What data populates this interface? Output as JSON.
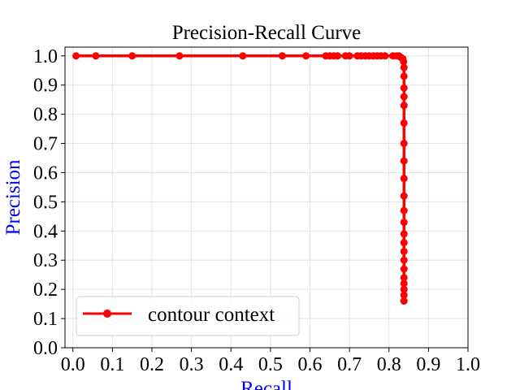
{
  "chart_data": {
    "type": "line",
    "title": "Precision-Recall Curve",
    "xlabel": "Recall",
    "ylabel": "Precision",
    "xlim": [
      -0.02,
      1.0
    ],
    "ylim": [
      0.0,
      1.03
    ],
    "xticks": [
      "0.0",
      "0.1",
      "0.2",
      "0.3",
      "0.4",
      "0.5",
      "0.6",
      "0.7",
      "0.8",
      "0.9",
      "1.0"
    ],
    "yticks": [
      "0.0",
      "0.1",
      "0.2",
      "0.3",
      "0.4",
      "0.5",
      "0.6",
      "0.7",
      "0.8",
      "0.9",
      "1.0"
    ],
    "grid": true,
    "legend_position": "lower-left",
    "label_color": "#0000ff",
    "series": [
      {
        "name": "contour context",
        "color": "#ff0000",
        "x": [
          0.008,
          0.058,
          0.15,
          0.27,
          0.43,
          0.53,
          0.59,
          0.64,
          0.65,
          0.66,
          0.67,
          0.69,
          0.7,
          0.72,
          0.73,
          0.74,
          0.75,
          0.76,
          0.77,
          0.78,
          0.79,
          0.81,
          0.82,
          0.825,
          0.83,
          0.835,
          0.837,
          0.838,
          0.838,
          0.838,
          0.838,
          0.838,
          0.838,
          0.838,
          0.838,
          0.838,
          0.838,
          0.838,
          0.838,
          0.838,
          0.838,
          0.838,
          0.838,
          0.838,
          0.838,
          0.838,
          0.838,
          0.838,
          0.838
        ],
        "y": [
          1.0,
          1.0,
          1.0,
          1.0,
          1.0,
          1.0,
          1.0,
          1.0,
          1.0,
          1.0,
          1.0,
          1.0,
          1.0,
          1.0,
          1.0,
          1.0,
          1.0,
          1.0,
          1.0,
          1.0,
          1.0,
          1.0,
          1.0,
          1.0,
          0.995,
          0.99,
          0.98,
          0.96,
          0.93,
          0.89,
          0.86,
          0.83,
          0.77,
          0.7,
          0.64,
          0.58,
          0.52,
          0.47,
          0.43,
          0.39,
          0.36,
          0.33,
          0.3,
          0.27,
          0.24,
          0.22,
          0.2,
          0.18,
          0.16
        ]
      }
    ]
  }
}
